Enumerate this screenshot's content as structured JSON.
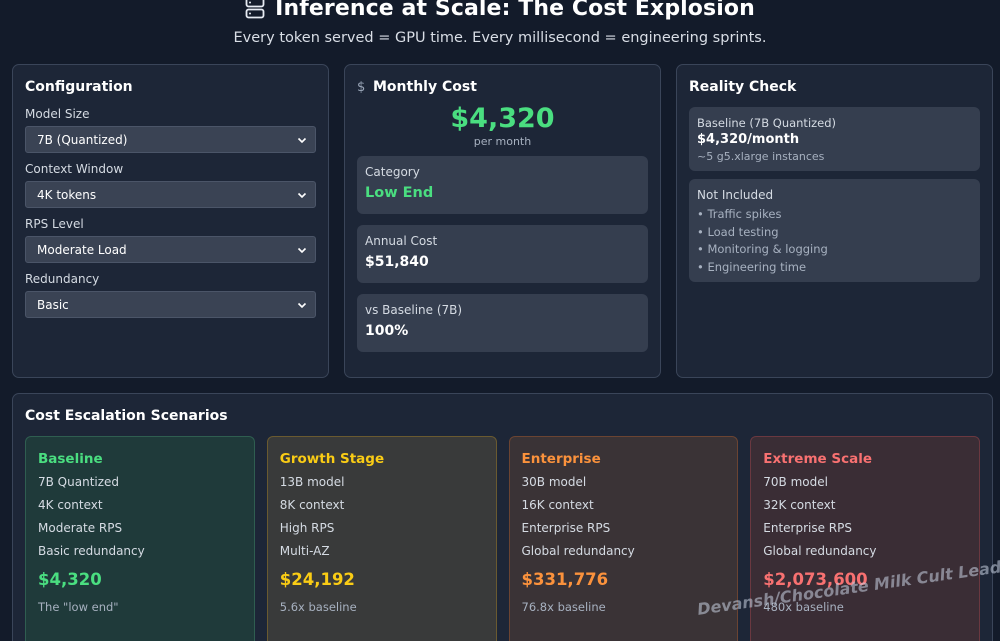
{
  "header": {
    "title": "Inference at Scale: The Cost Explosion",
    "subtitle": "Every token served = GPU time. Every millisecond = engineering sprints.",
    "icon": "server-icon"
  },
  "config": {
    "title": "Configuration",
    "fields": [
      {
        "label": "Model Size",
        "value": "7B (Quantized)"
      },
      {
        "label": "Context Window",
        "value": "4K tokens"
      },
      {
        "label": "RPS Level",
        "value": "Moderate Load"
      },
      {
        "label": "Redundancy",
        "value": "Basic"
      }
    ]
  },
  "monthly": {
    "title": "Monthly Cost",
    "icon": "dollar-icon",
    "cost": "$4,320",
    "per_month": "per month",
    "category_label": "Category",
    "category_value": "Low End",
    "annual_label": "Annual Cost",
    "annual_value": "$51,840",
    "vs_label": "vs Baseline (7B)",
    "vs_value": "100%"
  },
  "reality": {
    "title": "Reality Check",
    "baseline_label": "Baseline (7B Quantized)",
    "baseline_value": "$4,320/month",
    "baseline_note": "~5 g5.xlarge instances",
    "not_included_label": "Not Included",
    "not_included": [
      "• Traffic spikes",
      "• Load testing",
      "• Monitoring & logging",
      "• Engineering time"
    ]
  },
  "scenarios": {
    "title": "Cost Escalation Scenarios",
    "cards": [
      {
        "name": "Baseline",
        "specs": [
          "7B Quantized",
          "4K context",
          "Moderate RPS",
          "Basic redundancy"
        ],
        "cost": "$4,320",
        "note": "The \"low end\"",
        "color": "#4ade80"
      },
      {
        "name": "Growth Stage",
        "specs": [
          "13B model",
          "8K context",
          "High RPS",
          "Multi-AZ"
        ],
        "cost": "$24,192",
        "note": "5.6x baseline",
        "color": "#facc15"
      },
      {
        "name": "Enterprise",
        "specs": [
          "30B model",
          "16K context",
          "Enterprise RPS",
          "Global redundancy"
        ],
        "cost": "$331,776",
        "note": "76.8x baseline",
        "color": "#fb923c"
      },
      {
        "name": "Extreme Scale",
        "specs": [
          "70B model",
          "32K context",
          "Enterprise RPS",
          "Global redundancy"
        ],
        "cost": "$2,073,600",
        "note": "480x baseline",
        "color": "#f87171"
      }
    ]
  },
  "watermark": "Devansh/Chocolate Milk Cult Leader"
}
